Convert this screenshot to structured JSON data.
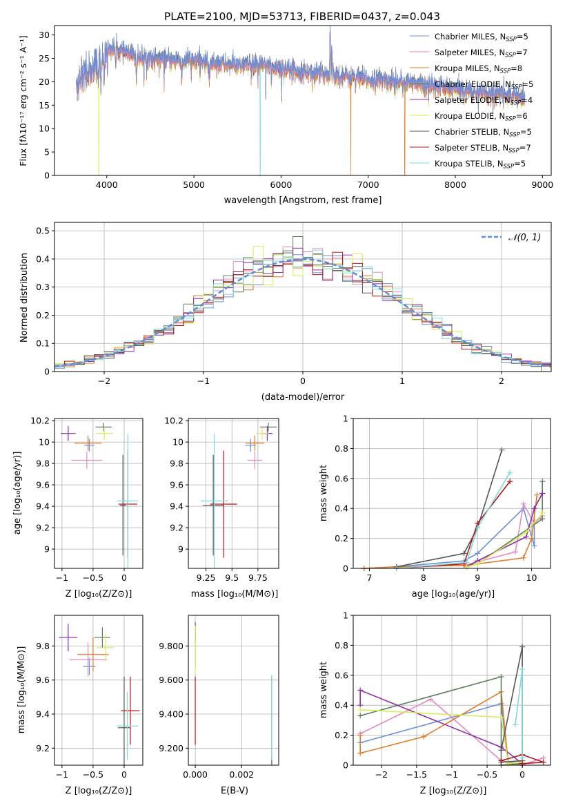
{
  "figure": {
    "title": "PLATE=2100, MJD=53713, FIBERID=0437, z=0.043"
  },
  "series_colors": {
    "Chabrier MILES": "#6a8fd8",
    "Salpeter MILES": "#e58ac0",
    "Kroupa MILES": "#e07b27",
    "Chabrier ELODIE": "#5a7f5a",
    "Salpeter ELODIE": "#8e2ea8",
    "Kroupa ELODIE": "#d7ee5a",
    "Chabrier STELIB": "#555555",
    "Salpeter STELIB": "#b01818",
    "Kroupa STELIB": "#7fd9dc"
  },
  "chart_data": [
    {
      "id": "spectrum",
      "type": "line",
      "xlabel": "wavelength [Angstrom, rest frame]",
      "ylabel": "Flux [fλ10⁻¹⁷ erg cm⁻² s⁻¹ A⁻¹]",
      "xlim": [
        3400,
        9100
      ],
      "ylim": [
        0,
        32
      ],
      "xticks": [
        4000,
        5000,
        6000,
        7000,
        8000,
        9000
      ],
      "yticks": [
        0,
        5,
        10,
        15,
        20,
        25,
        30
      ],
      "legend_position": "top-right",
      "legend": [
        {
          "label": "Chabrier MILES, N",
          "sub": "SSP",
          "suffix": "=5"
        },
        {
          "label": "Salpeter MILES, N",
          "sub": "SSP",
          "suffix": "=7"
        },
        {
          "label": "Kroupa MILES, N",
          "sub": "SSP",
          "suffix": "=8"
        },
        {
          "label": "Chabrier ELODIE, N",
          "sub": "SSP",
          "suffix": "=5"
        },
        {
          "label": "Salpeter ELODIE, N",
          "sub": "SSP",
          "suffix": "=4"
        },
        {
          "label": "Kroupa ELODIE, N",
          "sub": "SSP",
          "suffix": "=6"
        },
        {
          "label": "Chabrier STELIB, N",
          "sub": "SSP",
          "suffix": "=5"
        },
        {
          "label": "Salpeter STELIB, N",
          "sub": "SSP",
          "suffix": "=7"
        },
        {
          "label": "Kroupa STELIB, N",
          "sub": "SSP",
          "suffix": "=5"
        }
      ],
      "data_series": "Chabrier STELIB",
      "continuum": {
        "wavelength": [
          3650,
          3700,
          3800,
          3900,
          4000,
          4100,
          4300,
          4500,
          4800,
          5000,
          5200,
          5500,
          5800,
          6000,
          6300,
          6600,
          7000,
          7400,
          7800,
          8200,
          8500,
          8800
        ],
        "flux": [
          18.5,
          21.5,
          22.5,
          24,
          27,
          27,
          25.5,
          25,
          24.5,
          24.5,
          24,
          23.5,
          23.5,
          23,
          22,
          21.5,
          20.5,
          20,
          18.8,
          18,
          17.5,
          16.5
        ]
      },
      "features": [
        {
          "wavelength": 3934,
          "depth": 9
        },
        {
          "wavelength": 3969,
          "depth": 8
        },
        {
          "wavelength": 4102,
          "depth": 4
        },
        {
          "wavelength": 4340,
          "depth": 5
        },
        {
          "wavelength": 4861,
          "depth": 4
        },
        {
          "wavelength": 5175,
          "depth": 4
        },
        {
          "wavelength": 5890,
          "depth": 3
        },
        {
          "wavelength": 6563,
          "depth": -10
        },
        {
          "wavelength": 6583,
          "depth": -6
        }
      ],
      "dropouts": [
        {
          "series": "Kroupa ELODIE",
          "wavelength": 3910
        },
        {
          "series": "Kroupa STELIB",
          "wavelength": 5760
        },
        {
          "series": "Kroupa MILES",
          "wavelength": 6800
        },
        {
          "series": "Kroupa MILES",
          "wavelength": 7420
        }
      ]
    },
    {
      "id": "residuals",
      "type": "step",
      "xlabel": "(data-model)/error",
      "ylabel": "Normed distribution",
      "xlim": [
        -2.5,
        2.5
      ],
      "ylim": [
        0,
        0.53
      ],
      "xticks": [
        -2,
        -1,
        0,
        1,
        2
      ],
      "yticks": [
        0.0,
        0.1,
        0.2,
        0.3,
        0.4,
        0.5
      ],
      "grid": true,
      "bin_width": 0.1,
      "reference_curve": {
        "label": "𝒩(0, 1)",
        "style": "dashed",
        "color": "#5b8bd9"
      },
      "legend_position": "top-right"
    },
    {
      "id": "age_vs_Z",
      "type": "errorbar",
      "xlabel": "Z [log₁₀(Z/Z⊙)]",
      "ylabel": "age  [log₁₀(age/yr)]",
      "xlim": [
        -1.12,
        0.3
      ],
      "ylim": [
        8.82,
        10.22
      ],
      "xticks": [
        -1.0,
        -0.5,
        0.0
      ],
      "yticks": [
        9.0,
        9.2,
        9.4,
        9.6,
        9.8,
        10.0,
        10.2
      ],
      "grid": true,
      "points": [
        {
          "series": "Chabrier MILES",
          "x": -0.56,
          "y": 9.97,
          "xerr": 0.08,
          "yerr": 0.06
        },
        {
          "series": "Salpeter MILES",
          "x": -0.6,
          "y": 9.83,
          "xerr": 0.25,
          "yerr": 0.08
        },
        {
          "series": "Kroupa MILES",
          "x": -0.58,
          "y": 9.99,
          "xerr": 0.22,
          "yerr": 0.07
        },
        {
          "series": "Chabrier ELODIE",
          "x": -0.33,
          "y": 10.14,
          "xerr": 0.13,
          "yerr": 0.04
        },
        {
          "series": "Salpeter ELODIE",
          "x": -0.9,
          "y": 10.08,
          "xerr": 0.12,
          "yerr": 0.07
        },
        {
          "series": "Kroupa ELODIE",
          "x": -0.32,
          "y": 10.08,
          "xerr": 0.14,
          "yerr": 0.06
        },
        {
          "series": "Chabrier STELIB",
          "x": -0.02,
          "y": 9.41,
          "xerr": 0.05,
          "yerr": 0.47
        },
        {
          "series": "Salpeter STELIB",
          "x": 0.06,
          "y": 9.42,
          "xerr": 0.15,
          "yerr": 0.5
        },
        {
          "series": "Kroupa STELIB",
          "x": 0.06,
          "y": 9.45,
          "xerr": 0.17,
          "yerr": 0.63
        }
      ]
    },
    {
      "id": "age_vs_mass",
      "type": "errorbar",
      "xlabel": "mass [log₁₀(M/M⊙)]",
      "xlim": [
        9.08,
        9.95
      ],
      "ylim": [
        8.82,
        10.22
      ],
      "xticks": [
        9.25,
        9.5,
        9.75
      ],
      "yticks": [
        9.0,
        9.2,
        9.4,
        9.6,
        9.8,
        10.0,
        10.2
      ],
      "grid": true,
      "points": [
        {
          "series": "Chabrier MILES",
          "x": 9.68,
          "y": 9.97,
          "xerr": 0.05,
          "yerr": 0.06
        },
        {
          "series": "Salpeter MILES",
          "x": 9.72,
          "y": 9.83,
          "xerr": 0.07,
          "yerr": 0.08
        },
        {
          "series": "Kroupa MILES",
          "x": 9.72,
          "y": 9.99,
          "xerr": 0.09,
          "yerr": 0.07
        },
        {
          "series": "Chabrier ELODIE",
          "x": 9.85,
          "y": 10.14,
          "xerr": 0.08,
          "yerr": 0.04
        },
        {
          "series": "Salpeter ELODIE",
          "x": 9.84,
          "y": 10.08,
          "xerr": 0.05,
          "yerr": 0.07
        },
        {
          "series": "Kroupa ELODIE",
          "x": 9.79,
          "y": 10.08,
          "xerr": 0.06,
          "yerr": 0.06
        },
        {
          "series": "Chabrier STELIB",
          "x": 9.32,
          "y": 9.41,
          "xerr": 0.1,
          "yerr": 0.47
        },
        {
          "series": "Salpeter STELIB",
          "x": 9.42,
          "y": 9.42,
          "xerr": 0.13,
          "yerr": 0.5
        },
        {
          "series": "Kroupa STELIB",
          "x": 9.33,
          "y": 9.45,
          "xerr": 0.13,
          "yerr": 0.63
        }
      ]
    },
    {
      "id": "weight_vs_age",
      "type": "line",
      "xlabel": "age  [log₁₀(age/yr)]",
      "ylabel": "mass weight",
      "xlim": [
        6.7,
        10.35
      ],
      "ylim": [
        0,
        1.0
      ],
      "xticks": [
        7,
        8,
        9,
        10
      ],
      "yticks": [
        0.0,
        0.2,
        0.4,
        0.6,
        0.8,
        1.0
      ],
      "grid": true,
      "series": [
        {
          "name": "Chabrier MILES",
          "x": [
            6.9,
            7.5,
            8.75,
            9.0,
            9.85,
            10.05,
            10.05,
            10.2
          ],
          "y": [
            0.0,
            0.01,
            0.05,
            0.1,
            0.4,
            0.15,
            0.4,
            0.5
          ]
        },
        {
          "name": "Salpeter MILES",
          "x": [
            6.9,
            7.5,
            8.75,
            9.7,
            9.85,
            10.05,
            10.2
          ],
          "y": [
            0.0,
            0.01,
            0.02,
            0.11,
            0.43,
            0.3,
            0.35
          ]
        },
        {
          "name": "Kroupa MILES",
          "x": [
            6.9,
            7.5,
            8.75,
            9.0,
            9.85,
            10.0,
            10.1
          ],
          "y": [
            0.0,
            0.01,
            0.02,
            0.03,
            0.07,
            0.2,
            0.49
          ]
        },
        {
          "name": "Chabrier ELODIE",
          "x": [
            8.8,
            9.0,
            10.2,
            10.2
          ],
          "y": [
            0.01,
            0.03,
            0.33,
            0.58
          ]
        },
        {
          "name": "Salpeter ELODIE",
          "x": [
            8.8,
            9.0,
            9.9,
            10.05,
            10.2
          ],
          "y": [
            0.01,
            0.05,
            0.21,
            0.4,
            0.5
          ]
        },
        {
          "name": "Kroupa ELODIE",
          "x": [
            8.8,
            9.0,
            9.9,
            10.2
          ],
          "y": [
            0.01,
            0.03,
            0.24,
            0.37
          ]
        },
        {
          "name": "Chabrier STELIB",
          "x": [
            7.5,
            8.75,
            9.0,
            9.45
          ],
          "y": [
            0.01,
            0.1,
            0.27,
            0.79
          ]
        },
        {
          "name": "Salpeter STELIB",
          "x": [
            7.5,
            8.75,
            9.0,
            9.6
          ],
          "y": [
            0.0,
            0.03,
            0.3,
            0.58
          ]
        },
        {
          "name": "Kroupa STELIB",
          "x": [
            7.5,
            8.8,
            9.0,
            9.6
          ],
          "y": [
            0.0,
            0.04,
            0.27,
            0.64
          ]
        }
      ]
    },
    {
      "id": "mass_vs_Z",
      "type": "errorbar",
      "xlabel": "Z [log₁₀(Z/Z⊙)]",
      "ylabel": "mass [log₁₀(M/M⊙)]",
      "xlim": [
        -1.12,
        0.3
      ],
      "ylim": [
        9.1,
        9.98
      ],
      "xticks": [
        -1.0,
        -0.5,
        0.0
      ],
      "yticks": [
        9.2,
        9.4,
        9.6,
        9.8
      ],
      "grid": true,
      "points": [
        {
          "series": "Chabrier MILES",
          "x": -0.56,
          "y": 9.68,
          "xerr": 0.1,
          "yerr": 0.05
        },
        {
          "series": "Salpeter MILES",
          "x": -0.58,
          "y": 9.72,
          "xerr": 0.3,
          "yerr": 0.1
        },
        {
          "series": "Kroupa MILES",
          "x": -0.5,
          "y": 9.75,
          "xerr": 0.25,
          "yerr": 0.1
        },
        {
          "series": "Chabrier ELODIE",
          "x": -0.35,
          "y": 9.85,
          "xerr": 0.13,
          "yerr": 0.06
        },
        {
          "series": "Salpeter ELODIE",
          "x": -0.9,
          "y": 9.85,
          "xerr": 0.15,
          "yerr": 0.08
        },
        {
          "series": "Kroupa ELODIE",
          "x": -0.3,
          "y": 9.79,
          "xerr": 0.14,
          "yerr": 0.08
        },
        {
          "series": "Chabrier STELIB",
          "x": 0.0,
          "y": 9.32,
          "xerr": 0.1,
          "yerr": 0.3
        },
        {
          "series": "Salpeter STELIB",
          "x": 0.1,
          "y": 9.42,
          "xerr": 0.15,
          "yerr": 0.2
        },
        {
          "series": "Kroupa STELIB",
          "x": 0.05,
          "y": 9.33,
          "xerr": 0.17,
          "yerr": 0.2
        }
      ]
    },
    {
      "id": "mass_vs_ebv",
      "type": "errorbar",
      "xlabel": "E(B-V)",
      "xlim": [
        -0.0003,
        0.0036
      ],
      "ylim": [
        9.1,
        9.98
      ],
      "xticks": [
        0.0,
        0.002
      ],
      "yticks": [
        9.2,
        9.4,
        9.6,
        9.8
      ],
      "grid": true,
      "points": [
        {
          "series": "Salpeter ELODIE",
          "x": 0.0,
          "y": 9.88,
          "yerr": 0.06
        },
        {
          "series": "Chabrier ELODIE",
          "x": 0.0,
          "y": 9.8,
          "yerr": 0.12
        },
        {
          "series": "Kroupa ELODIE",
          "x": 0.0,
          "y": 9.78,
          "yerr": 0.14
        },
        {
          "series": "Salpeter STELIB",
          "x": 0.0,
          "y": 9.42,
          "yerr": 0.2
        },
        {
          "series": "Chabrier STELIB",
          "x": 0.0033,
          "y": 9.32,
          "yerr": 0.3
        },
        {
          "series": "Kroupa STELIB",
          "x": 0.0033,
          "y": 9.38,
          "yerr": 0.25
        }
      ]
    },
    {
      "id": "weight_vs_Z",
      "type": "line",
      "xlabel": "Z [log₁₀(Z/Z⊙)]",
      "ylabel": "mass weight",
      "xlim": [
        -2.4,
        0.4
      ],
      "ylim": [
        0,
        1.0
      ],
      "xticks": [
        -2.0,
        -1.5,
        -1.0,
        -0.5,
        0.0
      ],
      "yticks": [
        0.0,
        0.2,
        0.4,
        0.6,
        0.8,
        1.0
      ],
      "grid": true,
      "series": [
        {
          "name": "Chabrier MILES",
          "x": [
            -2.3,
            -0.3,
            -0.2,
            0.0
          ],
          "y": [
            0.15,
            0.41,
            0.02,
            0.01
          ]
        },
        {
          "name": "Salpeter MILES",
          "x": [
            -2.3,
            -1.3,
            -0.3,
            0.0,
            0.3
          ],
          "y": [
            0.21,
            0.44,
            0.03,
            0.0,
            0.05
          ]
        },
        {
          "name": "Kroupa MILES",
          "x": [
            -2.3,
            -2.3,
            -1.4,
            -0.3,
            -0.2,
            0.0
          ],
          "y": [
            0.2,
            0.08,
            0.19,
            0.49,
            0.01,
            0.02
          ]
        },
        {
          "name": "Chabrier ELODIE",
          "x": [
            -2.3,
            -0.3,
            -0.3,
            0.0
          ],
          "y": [
            0.33,
            0.59,
            0.0,
            0.01
          ]
        },
        {
          "name": "Salpeter ELODIE",
          "x": [
            -2.3,
            -2.3,
            -0.3,
            0.0
          ],
          "y": [
            0.4,
            0.5,
            0.12,
            0.01
          ]
        },
        {
          "name": "Kroupa ELODIE",
          "x": [
            -2.3,
            -0.3,
            -0.2,
            0.0
          ],
          "y": [
            0.37,
            0.32,
            0.01,
            0.02
          ]
        },
        {
          "name": "Chabrier STELIB",
          "x": [
            -0.3,
            0.0,
            0.0,
            -0.3
          ],
          "y": [
            0.1,
            0.79,
            0.03,
            0.02
          ]
        },
        {
          "name": "Salpeter STELIB",
          "x": [
            -0.3,
            0.0,
            0.3,
            0.0
          ],
          "y": [
            0.03,
            0.07,
            0.02,
            0.01
          ]
        },
        {
          "name": "Kroupa STELIB",
          "x": [
            -0.1,
            0.0,
            0.0
          ],
          "y": [
            0.27,
            0.64,
            0.05
          ]
        }
      ]
    }
  ]
}
